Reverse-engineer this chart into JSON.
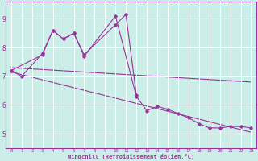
{
  "xlabel": "Windchill (Refroidissement éolien,°C)",
  "x_hours": [
    0,
    1,
    2,
    3,
    4,
    5,
    6,
    7,
    8,
    9,
    10,
    11,
    12,
    13,
    14,
    15,
    16,
    17,
    18,
    19,
    20,
    21,
    22,
    23
  ],
  "line_main_x": [
    0,
    1,
    3,
    4,
    5,
    6,
    7,
    10,
    12,
    13,
    14,
    15,
    16,
    17,
    18,
    19,
    20,
    21,
    22,
    23
  ],
  "line_main_y": [
    7.2,
    7.0,
    7.8,
    8.6,
    8.3,
    8.5,
    7.7,
    9.1,
    6.3,
    5.8,
    5.95,
    5.85,
    5.7,
    5.55,
    5.35,
    5.2,
    5.2,
    5.25,
    5.25,
    5.2
  ],
  "line_upper_x": [
    0,
    3,
    4,
    5,
    6,
    7,
    10,
    11,
    12
  ],
  "line_upper_y": [
    7.2,
    7.75,
    8.6,
    8.3,
    8.5,
    7.75,
    8.8,
    9.15,
    6.35
  ],
  "trend1_x": [
    0,
    23
  ],
  "trend1_y": [
    7.3,
    6.8
  ],
  "trend2_x": [
    0,
    23
  ],
  "trend2_y": [
    7.15,
    5.05
  ],
  "line_color": "#993399",
  "bg_color": "#cceee8",
  "grid_color": "#aadddd",
  "ylim": [
    4.5,
    9.6
  ],
  "yticks": [
    5,
    6,
    7,
    8,
    9
  ],
  "xlim": [
    -0.5,
    23.5
  ]
}
